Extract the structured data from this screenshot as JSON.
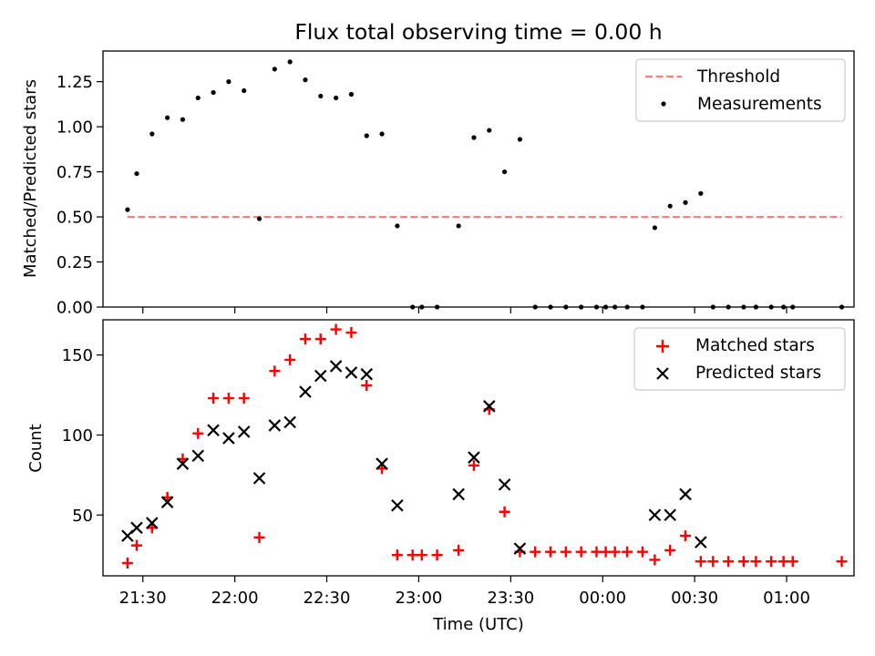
{
  "figure": {
    "title": "Flux total observing time = 0.00 h"
  },
  "chart_data": [
    {
      "id": "ratio",
      "type": "scatter",
      "ylabel": "Matched/Predicted stars",
      "xlabel": "",
      "xlim": [
        "21:17",
        "01:22"
      ],
      "ylim": [
        0,
        1.42
      ],
      "yticks": [
        0.0,
        0.25,
        0.5,
        0.75,
        1.0,
        1.25
      ],
      "ytick_labels": [
        "0.00",
        "0.25",
        "0.50",
        "0.75",
        "1.00",
        "1.25"
      ],
      "xticks": [
        "21:30",
        "22:00",
        "22:30",
        "23:00",
        "23:30",
        "00:00",
        "00:30",
        "01:00"
      ],
      "legend_position": "upper right",
      "legend": [
        "Threshold",
        "Measurements"
      ],
      "threshold": {
        "name": "Threshold",
        "value": 0.5,
        "x_range": [
          "21:25",
          "01:18"
        ],
        "color": "#ff7f7f",
        "style": "dashed"
      },
      "series": [
        {
          "name": "Measurements",
          "marker": "dot",
          "color": "#000000",
          "points": [
            [
              "21:25",
              0.54
            ],
            [
              "21:28",
              0.74
            ],
            [
              "21:33",
              0.96
            ],
            [
              "21:38",
              1.05
            ],
            [
              "21:43",
              1.04
            ],
            [
              "21:48",
              1.16
            ],
            [
              "21:53",
              1.19
            ],
            [
              "21:58",
              1.25
            ],
            [
              "22:03",
              1.2
            ],
            [
              "22:08",
              0.49
            ],
            [
              "22:13",
              1.32
            ],
            [
              "22:18",
              1.36
            ],
            [
              "22:23",
              1.26
            ],
            [
              "22:28",
              1.17
            ],
            [
              "22:33",
              1.16
            ],
            [
              "22:38",
              1.18
            ],
            [
              "22:43",
              0.95
            ],
            [
              "22:48",
              0.96
            ],
            [
              "22:53",
              0.45
            ],
            [
              "22:58",
              0.0
            ],
            [
              "23:01",
              0.0
            ],
            [
              "23:06",
              0.0
            ],
            [
              "23:13",
              0.45
            ],
            [
              "23:18",
              0.94
            ],
            [
              "23:23",
              0.98
            ],
            [
              "23:28",
              0.75
            ],
            [
              "23:33",
              0.93
            ],
            [
              "23:38",
              0.0
            ],
            [
              "23:43",
              0.0
            ],
            [
              "23:48",
              0.0
            ],
            [
              "23:53",
              0.0
            ],
            [
              "23:58",
              0.0
            ],
            [
              "00:01",
              0.0
            ],
            [
              "00:04",
              0.0
            ],
            [
              "00:08",
              0.0
            ],
            [
              "00:13",
              0.0
            ],
            [
              "00:17",
              0.44
            ],
            [
              "00:22",
              0.56
            ],
            [
              "00:27",
              0.58
            ],
            [
              "00:32",
              0.63
            ],
            [
              "00:36",
              0.0
            ],
            [
              "00:41",
              0.0
            ],
            [
              "00:46",
              0.0
            ],
            [
              "00:50",
              0.0
            ],
            [
              "00:55",
              0.0
            ],
            [
              "00:59",
              0.0
            ],
            [
              "01:02",
              0.0
            ],
            [
              "01:18",
              0.0
            ]
          ]
        }
      ]
    },
    {
      "id": "counts",
      "type": "scatter",
      "ylabel": "Count",
      "xlabel": "Time (UTC)",
      "xlim": [
        "21:17",
        "01:22"
      ],
      "ylim": [
        12,
        172
      ],
      "yticks": [
        50,
        100,
        150
      ],
      "ytick_labels": [
        "50",
        "100",
        "150"
      ],
      "xticks": [
        "21:30",
        "22:00",
        "22:30",
        "23:00",
        "23:30",
        "00:00",
        "00:30",
        "01:00"
      ],
      "xtick_labels": [
        "21:30",
        "22:00",
        "22:30",
        "23:00",
        "23:30",
        "00:00",
        "00:30",
        "01:00"
      ],
      "legend_position": "upper right",
      "legend": [
        "Matched stars",
        "Predicted stars"
      ],
      "series": [
        {
          "name": "Matched stars",
          "marker": "plus",
          "color": "#ff0000",
          "points": [
            [
              "21:25",
              20
            ],
            [
              "21:28",
              31
            ],
            [
              "21:33",
              42
            ],
            [
              "21:38",
              61
            ],
            [
              "21:43",
              85
            ],
            [
              "21:48",
              101
            ],
            [
              "21:53",
              123
            ],
            [
              "21:58",
              123
            ],
            [
              "22:03",
              123
            ],
            [
              "22:08",
              36
            ],
            [
              "22:13",
              140
            ],
            [
              "22:18",
              147
            ],
            [
              "22:23",
              160
            ],
            [
              "22:28",
              160
            ],
            [
              "22:33",
              166
            ],
            [
              "22:38",
              164
            ],
            [
              "22:43",
              131
            ],
            [
              "22:48",
              79
            ],
            [
              "22:53",
              25
            ],
            [
              "22:58",
              25
            ],
            [
              "23:01",
              25
            ],
            [
              "23:06",
              25
            ],
            [
              "23:13",
              28
            ],
            [
              "23:18",
              81
            ],
            [
              "23:23",
              116
            ],
            [
              "23:28",
              52
            ],
            [
              "23:33",
              27
            ],
            [
              "23:38",
              27
            ],
            [
              "23:43",
              27
            ],
            [
              "23:48",
              27
            ],
            [
              "23:53",
              27
            ],
            [
              "23:58",
              27
            ],
            [
              "00:01",
              27
            ],
            [
              "00:04",
              27
            ],
            [
              "00:08",
              27
            ],
            [
              "00:13",
              27
            ],
            [
              "00:17",
              22
            ],
            [
              "00:22",
              28
            ],
            [
              "00:27",
              37
            ],
            [
              "00:32",
              21
            ],
            [
              "00:36",
              21
            ],
            [
              "00:41",
              21
            ],
            [
              "00:46",
              21
            ],
            [
              "00:50",
              21
            ],
            [
              "00:55",
              21
            ],
            [
              "00:59",
              21
            ],
            [
              "01:02",
              21
            ],
            [
              "01:18",
              21
            ]
          ]
        },
        {
          "name": "Predicted stars",
          "marker": "x",
          "color": "#000000",
          "points": [
            [
              "21:25",
              37
            ],
            [
              "21:28",
              42
            ],
            [
              "21:33",
              45
            ],
            [
              "21:38",
              58
            ],
            [
              "21:43",
              82
            ],
            [
              "21:48",
              87
            ],
            [
              "21:53",
              103
            ],
            [
              "21:58",
              98
            ],
            [
              "22:03",
              102
            ],
            [
              "22:08",
              73
            ],
            [
              "22:13",
              106
            ],
            [
              "22:18",
              108
            ],
            [
              "22:23",
              127
            ],
            [
              "22:28",
              137
            ],
            [
              "22:33",
              143
            ],
            [
              "22:38",
              139
            ],
            [
              "22:43",
              138
            ],
            [
              "22:48",
              82
            ],
            [
              "22:53",
              56
            ],
            [
              "23:13",
              63
            ],
            [
              "23:18",
              86
            ],
            [
              "23:23",
              118
            ],
            [
              "23:28",
              69
            ],
            [
              "23:33",
              29
            ],
            [
              "00:17",
              50
            ],
            [
              "00:22",
              50
            ],
            [
              "00:27",
              63
            ],
            [
              "00:32",
              33
            ]
          ]
        }
      ]
    }
  ]
}
